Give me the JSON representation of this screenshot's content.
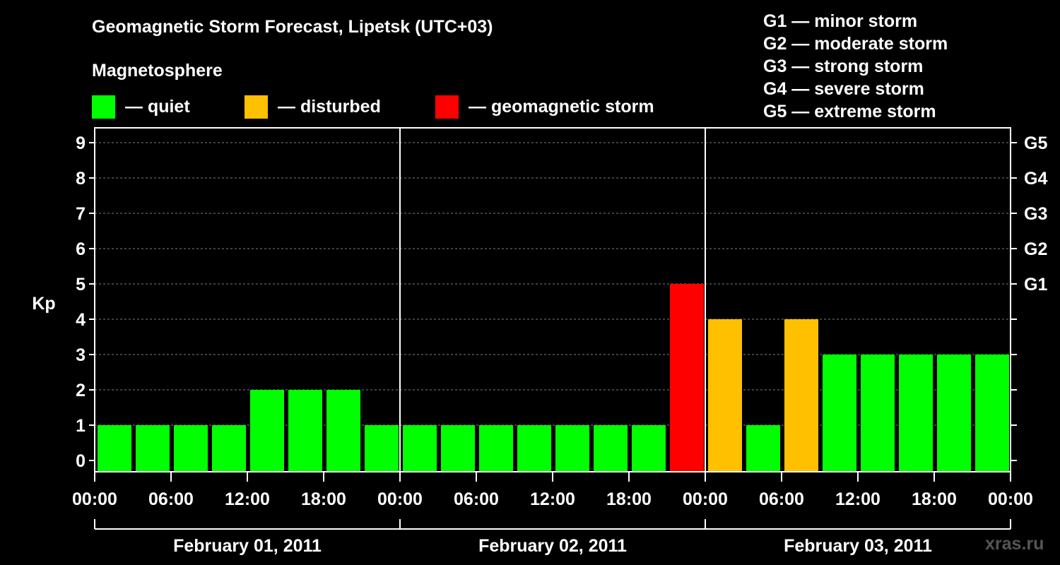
{
  "title": "Geomagnetic Storm Forecast, Lipetsk (UTC+03)",
  "magnetosphere": {
    "title": "Magnetosphere",
    "legend": [
      {
        "label": "— quiet",
        "color": "#00ff00"
      },
      {
        "label": "— disturbed",
        "color": "#ffc000"
      },
      {
        "label": "— geomagnetic storm",
        "color": "#ff0000"
      }
    ]
  },
  "storm_scale": [
    "G1 — minor storm",
    "G2 — moderate storm",
    "G3 — strong storm",
    "G4 — severe storm",
    "G5 — extreme storm"
  ],
  "watermark": "xras.ru",
  "chart_data": {
    "type": "bar",
    "ylabel": "Kp",
    "ylim": [
      0,
      9
    ],
    "yticks": [
      "0",
      "1",
      "2",
      "3",
      "4",
      "5",
      "6",
      "7",
      "8",
      "9"
    ],
    "right_ticks": [
      {
        "kp": 5,
        "label": "G1"
      },
      {
        "kp": 6,
        "label": "G2"
      },
      {
        "kp": 7,
        "label": "G3"
      },
      {
        "kp": 8,
        "label": "G4"
      },
      {
        "kp": 9,
        "label": "G5"
      }
    ],
    "grid": "horizontal dashed",
    "x_tick_labels": [
      "00:00",
      "06:00",
      "12:00",
      "18:00",
      "00:00",
      "06:00",
      "12:00",
      "18:00",
      "00:00",
      "06:00",
      "12:00",
      "18:00",
      "00:00"
    ],
    "days": [
      "February 01, 2011",
      "February 02, 2011",
      "February 03, 2011"
    ],
    "values": [
      1,
      1,
      1,
      1,
      2,
      2,
      2,
      1,
      1,
      1,
      1,
      1,
      1,
      1,
      1,
      5,
      4,
      1,
      4,
      3,
      3,
      3,
      3,
      3
    ],
    "levels": [
      "quiet",
      "quiet",
      "quiet",
      "quiet",
      "quiet",
      "quiet",
      "quiet",
      "quiet",
      "quiet",
      "quiet",
      "quiet",
      "quiet",
      "quiet",
      "quiet",
      "quiet",
      "storm",
      "disturbed",
      "quiet",
      "disturbed",
      "quiet",
      "quiet",
      "quiet",
      "quiet",
      "quiet"
    ],
    "level_colors": {
      "quiet": "#00ff00",
      "disturbed": "#ffc000",
      "storm": "#ff0000"
    }
  }
}
